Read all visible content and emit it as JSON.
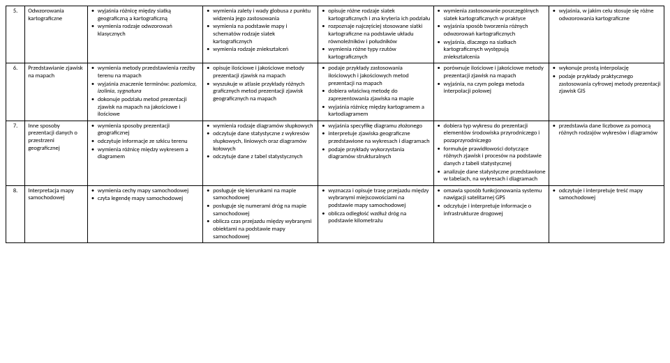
{
  "rows": [
    {
      "num": "5.",
      "topic": "Odwzorowania kartograficzne",
      "c1": [
        "wyjaśnia różnicę między siatką geograficzną a kartograficzną",
        "wymienia rodzaje odwzorowań klasycznych"
      ],
      "c2": [
        "wymienia zalety i wady globusa z punktu widzenia jego zastosowania",
        "wymienia na podstawie mapy i schematów rodzaje siatek kartograficznych",
        "wymienia rodzaje zniekształceń"
      ],
      "c3": [
        "opisuje różne rodzaje siatek kartograficznych i zna kryteria ich podziału",
        "rozpoznaje najczęściej stosowane siatki kartograficzne na podstawie układu równoleżników i południków",
        "wymienia różne typy rzutów kartograficznych"
      ],
      "c4": [
        "wymienia zastosowanie poszczególnych siatek kartograficznych w praktyce",
        "wyjaśnia sposób tworzenia różnych odwzorowań kartograficznych",
        "wyjaśnia, dlaczego na siatkach kartograficznych występują zniekształcenia"
      ],
      "c5": [
        "wyjaśnia, w jakim celu stosuje się różne odwzorowania kartograficzne"
      ]
    },
    {
      "num": "6.",
      "topic": "Przedstawianie zjawisk na mapach",
      "c1": [
        "wymienia metody przedstawienia rzeźby terenu na mapach",
        "wyjaśnia znaczenie terminów: <em>poziomica, izolinia, sygnatura</em>",
        "dokonuje podziału metod prezentacji zjawisk na mapach na jakościowe i ilościowe"
      ],
      "c2": [
        "opisuje ilościowe i jakościowe metody prezentacji zjawisk na mapach",
        "wyszukuje w atlasie przykłady różnych graficznych metod prezentacji zjawisk geograficznych na mapach"
      ],
      "c3": [
        "podaje przykłady zastosowania ilościowych i jakościowych metod prezentacji na mapach",
        "dobiera właściwą metodę do zaprezentowania zjawiska na mapie",
        "wyjaśnia różnicę między kartogramem a kartodiagramem"
      ],
      "c4": [
        "porównuje ilościowe i jakościowe metody prezentacji zjawisk na mapach",
        "wyjaśnia, na czym polega metoda interpolacji polowej"
      ],
      "c5": [
        "wykonuje prostą interpolację",
        "podaje przykłady praktycznego zastosowania cyfrowej metody prezentacji zjawisk GIS"
      ]
    },
    {
      "num": "7.",
      "topic": "Inne sposoby prezentacji danych o przestrzeni geograficznej",
      "c1": [
        "wymienia sposoby prezentacji geograficznej",
        "odczytuje informacje ze szkicu terenu",
        "wymienia różnicę między wykresem a diagramem"
      ],
      "c2": [
        "wymienia rodzaje diagramów słupkowych",
        "odczytuje dane statystyczne z wykresów słupkowych, liniowych oraz diagramów kołowych",
        "odczytuje dane z tabel statystycznych"
      ],
      "c3": [
        "wyjaśnia specyfikę diagramu złożonego",
        "interpretuje zjawiska geograficzne przedstawione na wykresach i diagramach",
        "podaje przykłady wykorzystania diagramów strukturalnych"
      ],
      "c4": [
        "dobiera typ wykresu do prezentacji elementów środowiska przyrodniczego i pozaprzyrodniczego",
        "formułuje prawidłowości dotyczące różnych zjawisk i procesów na podstawie danych z tabeli statystycznej",
        "analizuje dane statystyczne przedstawione w tabelach, na wykresach i diagramach"
      ],
      "c5": [
        "przedstawia dane liczbowe za pomocą różnych rodzajów wykresów i diagramów"
      ]
    },
    {
      "num": "8.",
      "topic": "Interpretacja mapy samochodowej",
      "c1": [
        "wymienia cechy mapy samochodowej",
        "czyta legendę mapy samochodowej"
      ],
      "c2": [
        "posługuje się kierunkami na mapie samochodowej",
        "posługuje się numerami dróg na mapie samochodowej",
        "oblicza czas przejazdu między wybranymi obiektami na podstawie mapy samochodowej"
      ],
      "c3": [
        "wyznacza i opisuje trasę przejazdu między wybranymi miejscowościami na podstawie mapy samochodowej",
        "oblicza odległość wzdłuż dróg na podstawie kilometrażu"
      ],
      "c4": [
        "omawia sposób funkcjonowania systemu nawigacji satelitarnej GPS",
        "odczytuje i interpretuje informacje o infrastrukturze drogowej"
      ],
      "c5": [
        "odczytuje i interpretuje treść mapy samochodowej"
      ]
    }
  ]
}
